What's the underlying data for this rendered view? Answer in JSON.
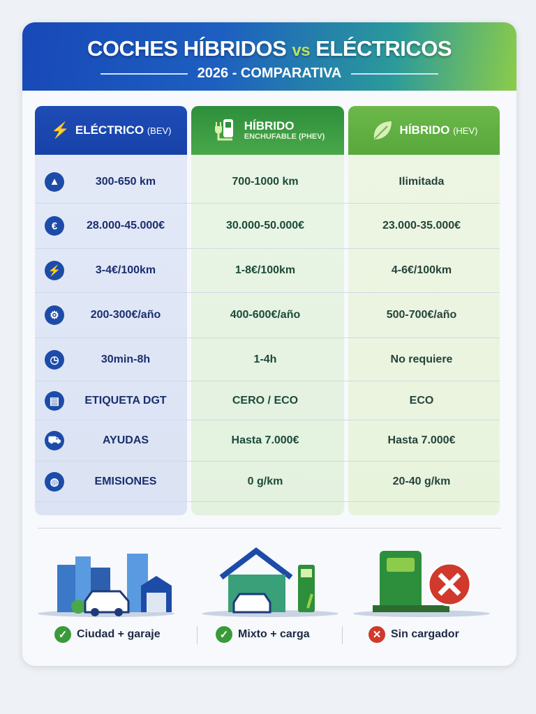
{
  "header": {
    "title_part1": "COCHES HÍBRIDOS",
    "title_vs": "vs",
    "title_part2": "ELÉCTRICOS",
    "subtitle": "2026 - COMPARATIVA"
  },
  "columns": [
    {
      "name": "ELÉCTRICO",
      "abbr": "(BEV)",
      "icon": "lightning-icon",
      "color": "#1f4cb5"
    },
    {
      "name": "HÍBRIDO",
      "abbr": "ENCHUFABLE (PHEV)",
      "icon": "charger-plug-icon",
      "color": "#2d8f3c"
    },
    {
      "name": "HÍBRIDO",
      "abbr": "(HEV)",
      "icon": "leaf-icon",
      "color": "#6cb84a"
    }
  ],
  "rows": [
    {
      "icon": "map-icon",
      "bev": "300-650 km",
      "phev": "700-1000 km",
      "hev": "Ilimitada"
    },
    {
      "icon": "money-bag-euro-icon",
      "bev": "28.000-45.000€",
      "phev": "30.000-50.000€",
      "hev": "23.000-35.000€"
    },
    {
      "icon": "lightning-icon",
      "bev": "3-4€/100km",
      "phev": "1-8€/100km",
      "hev": "4-6€/100km"
    },
    {
      "icon": "gears-icon",
      "bev": "200-300€/año",
      "phev": "400-600€/año",
      "hev": "500-700€/año"
    },
    {
      "icon": "stopwatch-icon",
      "bev": "30min-8h",
      "phev": "1-4h",
      "hev": "No requiere"
    },
    {
      "icon": "label-card-icon",
      "bev": "ETIQUETA DGT",
      "phev": "CERO / ECO",
      "hev": "ECO"
    },
    {
      "icon": "subsidy-icon",
      "bev": "AYUDAS",
      "phev": "Hasta 7.000€",
      "hev": "Hasta 7.000€"
    },
    {
      "icon": "globe-icon",
      "bev": "EMISIONES",
      "phev": "0 g/km",
      "hev": "20-40 g/km"
    }
  ],
  "footer": [
    {
      "label": "Ciudad + garaje",
      "status": "check",
      "color": "#3a9a3a"
    },
    {
      "label": "Mixto + carga",
      "status": "check",
      "color": "#3a9a3a"
    },
    {
      "label": "Sin cargador",
      "status": "cross",
      "color": "#d0392b"
    }
  ]
}
